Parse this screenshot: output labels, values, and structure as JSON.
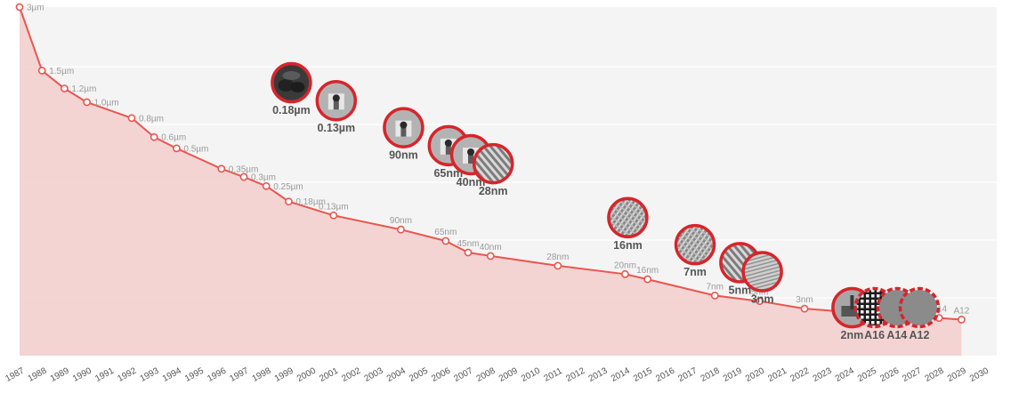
{
  "chart_data": {
    "type": "line",
    "title": "",
    "xlabel": "",
    "ylabel": "",
    "grid": true,
    "accent_color": "#e8564f",
    "node_ring_color": "#d6252b",
    "fill_color": "#f4cfcf",
    "x_ticks": [
      "1987",
      "1988",
      "1989",
      "1990",
      "1991",
      "1992",
      "1993",
      "1994",
      "1995",
      "1996",
      "1997",
      "1998",
      "1999",
      "2000",
      "2001",
      "2002",
      "2003",
      "2004",
      "2005",
      "2006",
      "2007",
      "2008",
      "2009",
      "2010",
      "2011",
      "2012",
      "2013",
      "2014",
      "2015",
      "2016",
      "2017",
      "2018",
      "2019",
      "2020",
      "2021",
      "2022",
      "2023",
      "2024",
      "2025",
      "2026",
      "2027",
      "2028",
      "2029",
      "2030"
    ],
    "series": [
      {
        "points": [
          {
            "x": "1987",
            "value_nm": 3000,
            "label": "3µm"
          },
          {
            "x": "1988",
            "value_nm": 1500,
            "label": "1.5µm"
          },
          {
            "x": "1989",
            "value_nm": 1200,
            "label": "1.2µm"
          },
          {
            "x": "1990",
            "value_nm": 1000,
            "label": "1.0µm"
          },
          {
            "x": "1992",
            "value_nm": 800,
            "label": "0.8µm"
          },
          {
            "x": "1993",
            "value_nm": 600,
            "label": "0.6µm"
          },
          {
            "x": "1994",
            "value_nm": 500,
            "label": "0.5µm"
          },
          {
            "x": "1996",
            "value_nm": 350,
            "label": "0.35µm"
          },
          {
            "x": "1997",
            "value_nm": 300,
            "label": "0.3µm"
          },
          {
            "x": "1998",
            "value_nm": 250,
            "label": "0.25µm"
          },
          {
            "x": "1999",
            "value_nm": 180,
            "label": "0.18µm"
          },
          {
            "x": "2001",
            "value_nm": 130,
            "label": "0.13µm"
          },
          {
            "x": "2004",
            "value_nm": 90,
            "label": "90nm"
          },
          {
            "x": "2006",
            "value_nm": 65,
            "label": "65nm"
          },
          {
            "x": "2007",
            "value_nm": 45,
            "label": "45nm"
          },
          {
            "x": "2008",
            "value_nm": 40,
            "label": "40nm"
          },
          {
            "x": "2011",
            "value_nm": 28,
            "label": "28nm"
          },
          {
            "x": "2014",
            "value_nm": 20,
            "label": "20nm"
          },
          {
            "x": "2015",
            "value_nm": 16,
            "label": "16nm"
          },
          {
            "x": "2018",
            "value_nm": 7,
            "label": "7nm"
          },
          {
            "x": "2020",
            "value_nm": 5,
            "label": "5nm"
          },
          {
            "x": "2022",
            "value_nm": 3,
            "label": "3nm"
          },
          {
            "x": "2025",
            "value_nm": 2,
            "label": "2nm"
          },
          {
            "x": "2026",
            "value_nm": 1.6,
            "label": "A16"
          },
          {
            "x": "2028",
            "value_nm": 1.4,
            "label": "A14"
          },
          {
            "x": "2029",
            "value_nm": 1.2,
            "label": "A12"
          }
        ]
      }
    ],
    "technology_nodes": [
      {
        "label": "0.18µm",
        "year": "1999",
        "pattern": "bumps"
      },
      {
        "label": "0.13µm",
        "year": "2001",
        "pattern": "cell"
      },
      {
        "label": "90nm",
        "year": "2004",
        "pattern": "cell"
      },
      {
        "label": "65nm",
        "year": "2006",
        "pattern": "cell"
      },
      {
        "label": "40nm",
        "year": "2007",
        "pattern": "cell"
      },
      {
        "label": "28nm",
        "year": "2008",
        "pattern": "fins"
      },
      {
        "label": "16nm",
        "year": "2014",
        "pattern": "mesh"
      },
      {
        "label": "7nm",
        "year": "2017",
        "pattern": "mesh"
      },
      {
        "label": "5nm",
        "year": "2019",
        "pattern": "fins"
      },
      {
        "label": "3nm",
        "year": "2020",
        "pattern": "stripes"
      },
      {
        "label": "2nm",
        "year": "2024",
        "pattern": "nanosheet",
        "ring": "solid"
      },
      {
        "label": "A16",
        "year": "2025",
        "pattern": "grid",
        "ring": "dashed"
      },
      {
        "label": "A14",
        "year": "2026",
        "pattern": "blank",
        "ring": "dashed"
      },
      {
        "label": "A12",
        "year": "2027",
        "pattern": "blank",
        "ring": "dashed"
      }
    ]
  }
}
